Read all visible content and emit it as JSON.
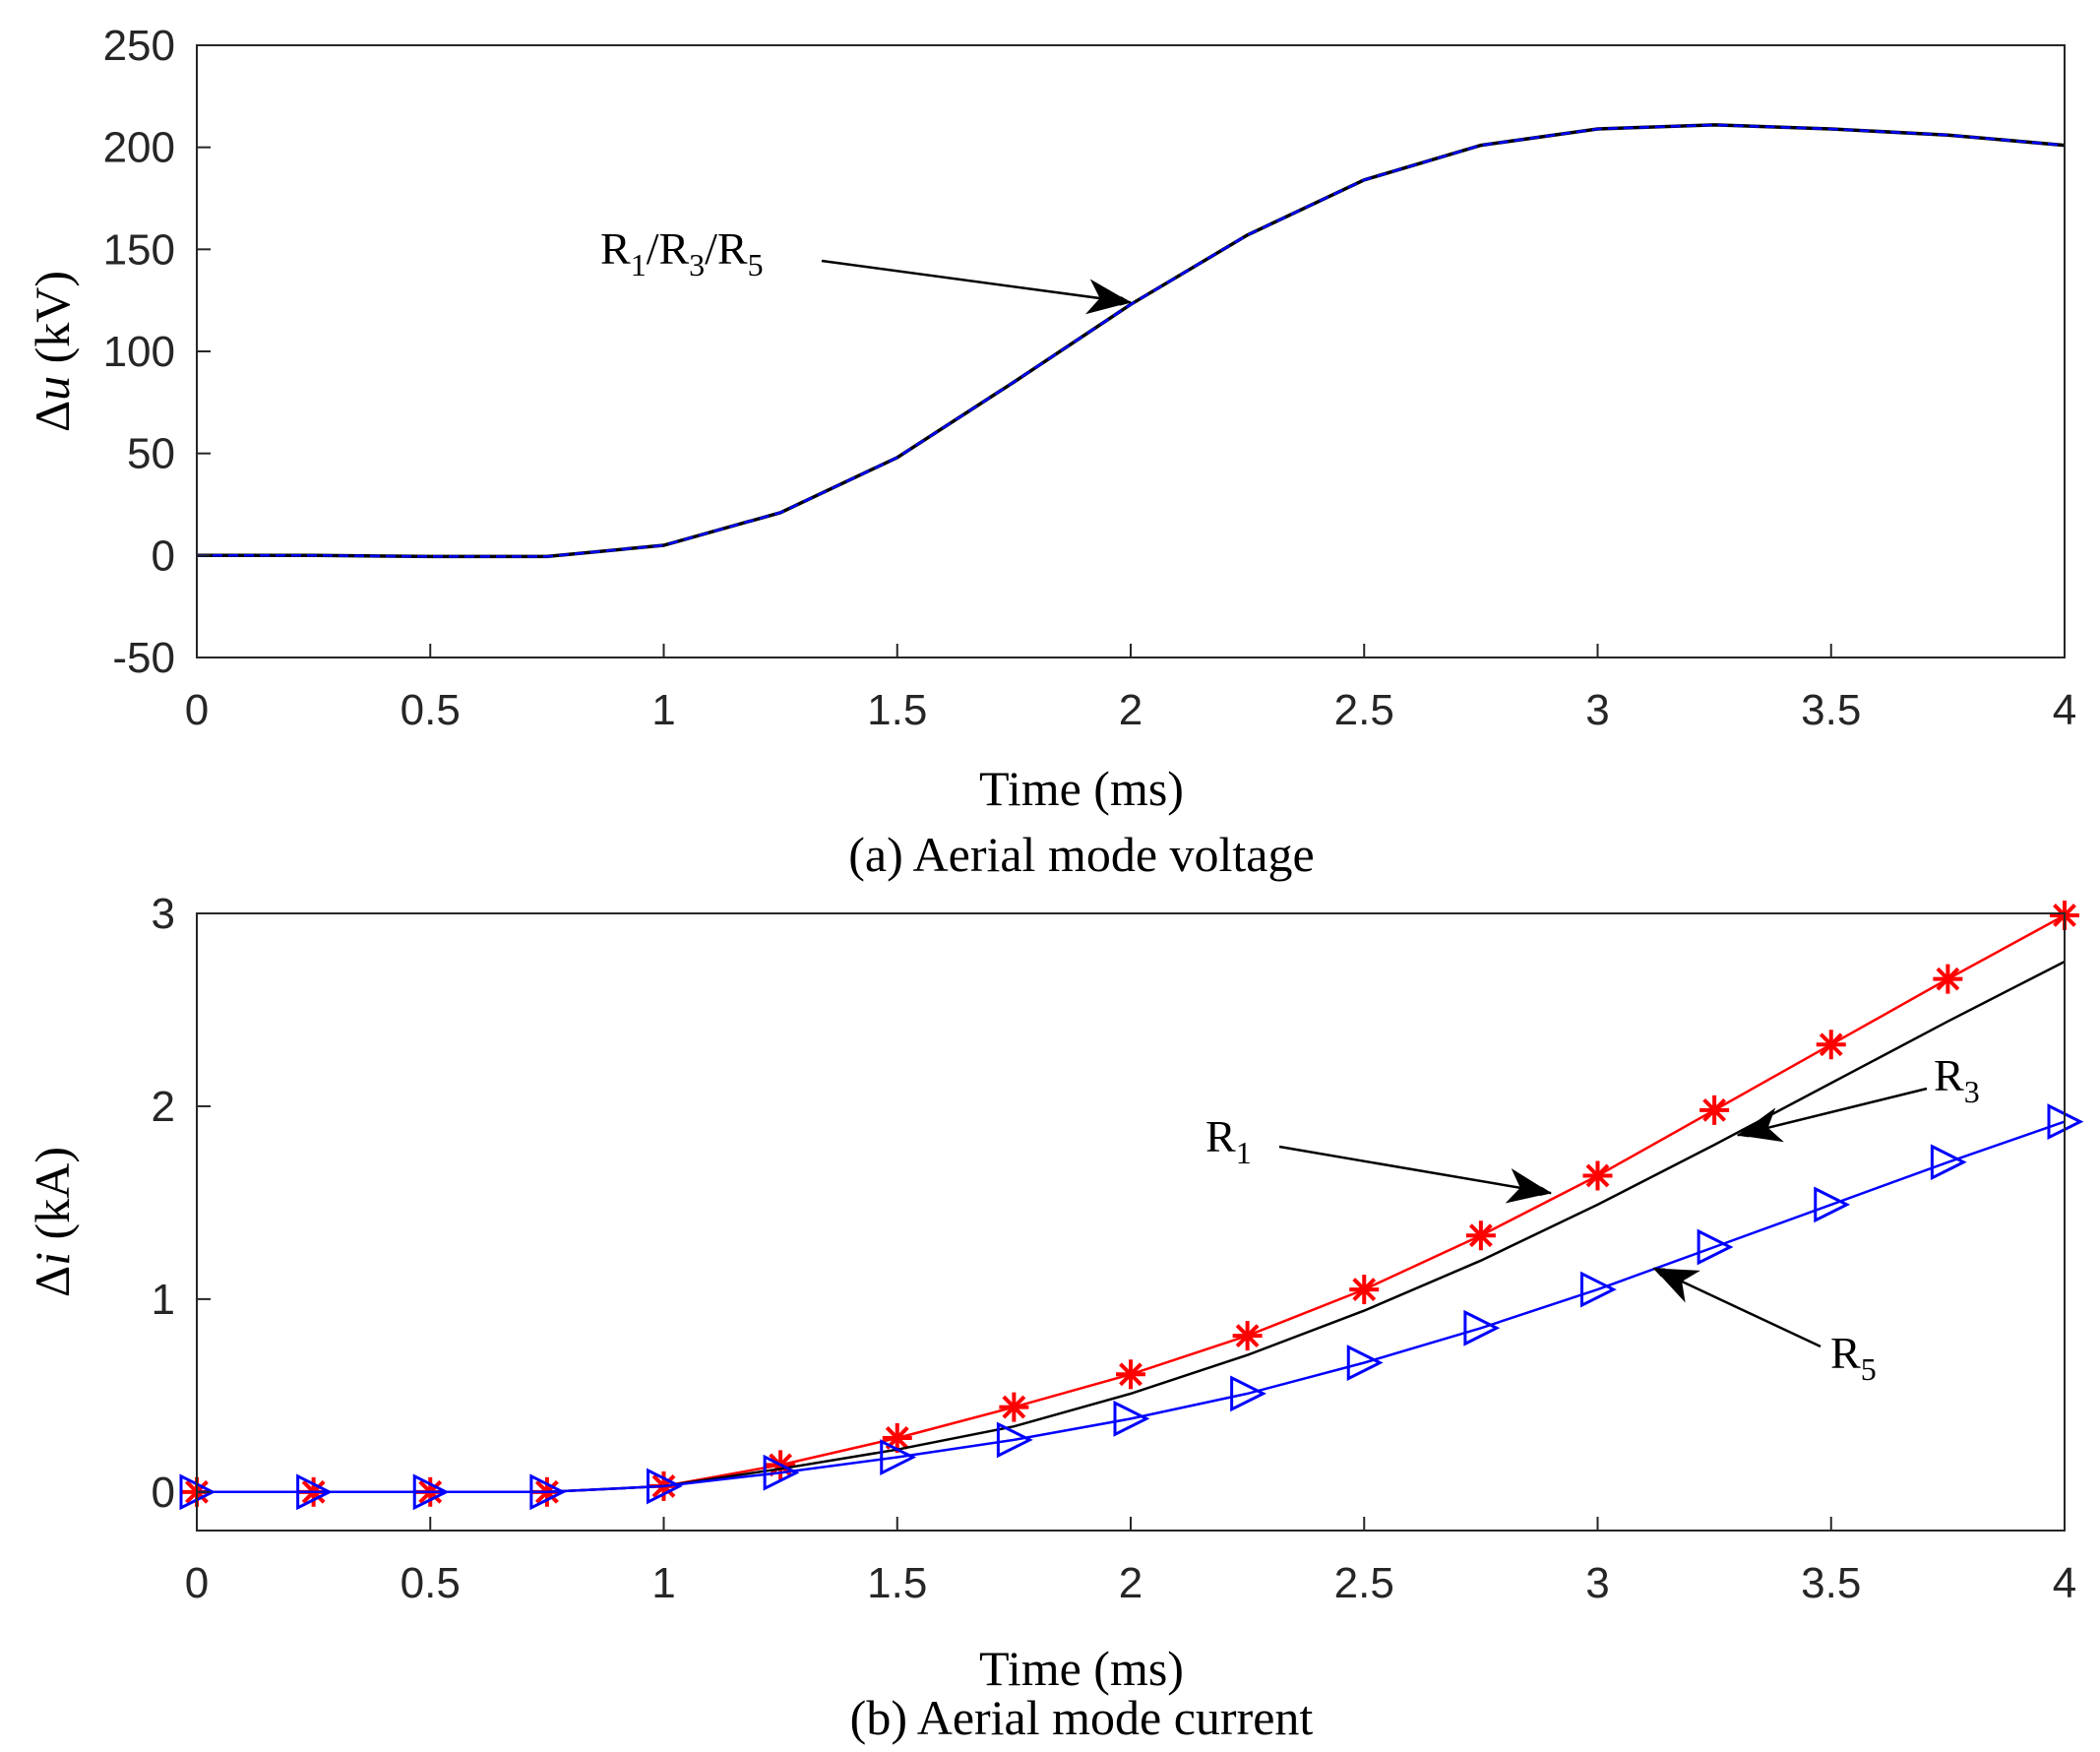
{
  "chart_data": [
    {
      "type": "line",
      "caption": "(a) Aerial mode voltage",
      "xlabel": "Time (ms)",
      "ylabel": "Δu (kV)",
      "xlim": [
        0,
        4
      ],
      "ylim": [
        -50,
        250
      ],
      "xticks": [
        "0",
        "0.5",
        "1",
        "1.5",
        "2",
        "2.5",
        "3",
        "3.5",
        "4"
      ],
      "yticks": [
        "-50",
        "0",
        "50",
        "100",
        "150",
        "200",
        "250"
      ],
      "x": [
        0,
        0.25,
        0.5,
        0.75,
        1.0,
        1.25,
        1.5,
        1.75,
        2.0,
        2.25,
        2.5,
        2.75,
        3.0,
        3.25,
        3.5,
        3.75,
        4.0
      ],
      "series": [
        {
          "name": "R1/R3/R5",
          "color": "#0000ff",
          "marker": "none",
          "values": [
            0,
            0,
            -0.5,
            -0.5,
            5,
            21,
            48,
            85,
            123,
            157,
            184,
            201,
            209,
            211,
            209,
            206,
            201
          ]
        }
      ],
      "annotations": [
        {
          "label": "R1/R3/R5",
          "parts": [
            "R",
            "1",
            "/R",
            "3",
            "/R",
            "5"
          ],
          "point_to": [
            2.0,
            124
          ]
        }
      ]
    },
    {
      "type": "line",
      "caption": "(b) Aerial mode current",
      "xlabel": "Time (ms)",
      "ylabel": "Δi (kA)",
      "xlim": [
        0,
        4
      ],
      "ylim": [
        -0.2,
        3
      ],
      "xticks": [
        "0",
        "0.5",
        "1",
        "1.5",
        "2",
        "2.5",
        "3",
        "3.5",
        "4"
      ],
      "yticks": [
        "0",
        "1",
        "2",
        "3"
      ],
      "x": [
        0,
        0.25,
        0.5,
        0.75,
        1.0,
        1.25,
        1.5,
        1.75,
        2.0,
        2.25,
        2.5,
        2.75,
        3.0,
        3.25,
        3.5,
        3.75,
        4.0
      ],
      "series": [
        {
          "name": "R1",
          "color": "#ff0000",
          "marker": "asterisk",
          "values": [
            0,
            0,
            0,
            0,
            0.03,
            0.14,
            0.28,
            0.44,
            0.61,
            0.81,
            1.05,
            1.33,
            1.64,
            1.98,
            2.32,
            2.66,
            2.99
          ]
        },
        {
          "name": "R3",
          "color": "#000000",
          "marker": "none",
          "values": [
            0,
            0,
            0,
            0,
            0.03,
            0.12,
            0.22,
            0.34,
            0.51,
            0.71,
            0.94,
            1.2,
            1.49,
            1.8,
            2.12,
            2.44,
            2.75
          ]
        },
        {
          "name": "R5",
          "color": "#0000ff",
          "marker": "triangle-right",
          "values": [
            0,
            0,
            0,
            0,
            0.03,
            0.1,
            0.18,
            0.27,
            0.38,
            0.51,
            0.67,
            0.85,
            1.05,
            1.27,
            1.49,
            1.71,
            1.92
          ]
        }
      ],
      "annotations": [
        {
          "label": "R1",
          "parts": [
            "R",
            "1"
          ],
          "point_to": [
            2.9,
            1.55
          ]
        },
        {
          "label": "R3",
          "parts": [
            "R",
            "3"
          ],
          "point_to": [
            3.3,
            1.85
          ]
        },
        {
          "label": "R5",
          "parts": [
            "R",
            "5"
          ],
          "point_to": [
            3.12,
            1.16
          ]
        }
      ]
    }
  ]
}
